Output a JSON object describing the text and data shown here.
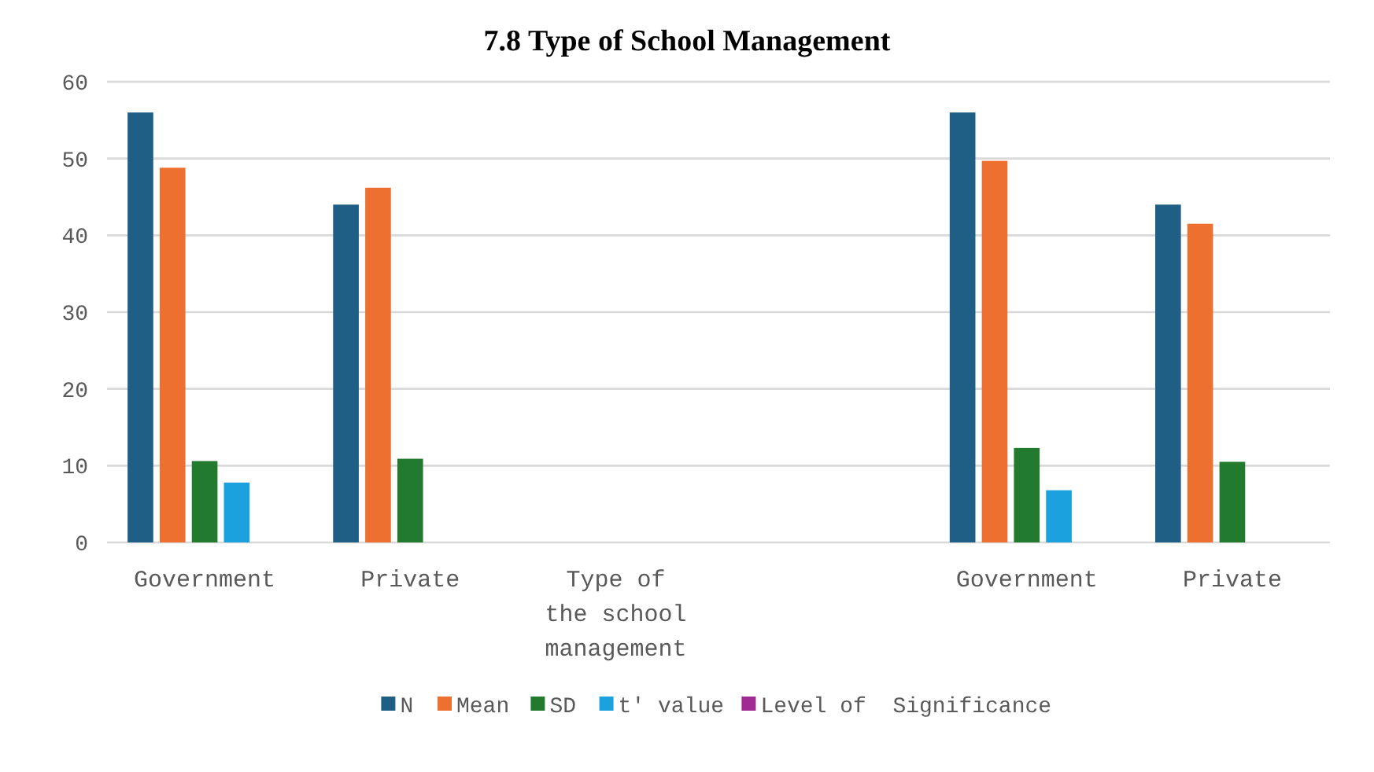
{
  "chart_data": {
    "type": "bar",
    "title": "7.8 Type of School Management",
    "categories": [
      "Government",
      "Private",
      "Type of the school management",
      null,
      "Government",
      "Private"
    ],
    "series": [
      {
        "name": "N",
        "color": "#1f5f86",
        "values": [
          56,
          44,
          null,
          null,
          56,
          44
        ]
      },
      {
        "name": "Mean",
        "color": "#ed7030",
        "values": [
          48.8,
          46.2,
          null,
          null,
          49.7,
          41.5
        ]
      },
      {
        "name": "SD",
        "color": "#217a2d",
        "values": [
          10.6,
          10.9,
          null,
          null,
          12.3,
          10.5
        ]
      },
      {
        "name": "t' value",
        "color": "#1ba2de",
        "values": [
          7.8,
          null,
          null,
          null,
          6.8,
          null
        ]
      },
      {
        "name": "Level of  Significance",
        "color": "#a02b93",
        "values": [
          null,
          null,
          null,
          null,
          null,
          null
        ]
      }
    ],
    "ylim": [
      0,
      60
    ],
    "yticks": [
      0,
      10,
      20,
      30,
      40,
      50,
      60
    ],
    "grid": "y",
    "legend": "bottom"
  }
}
